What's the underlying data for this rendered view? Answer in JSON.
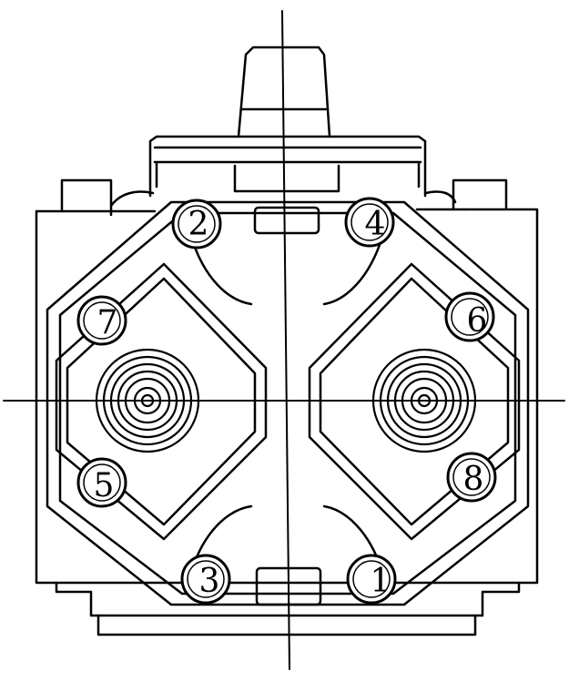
{
  "bolts": [
    {
      "label": "1"
    },
    {
      "label": "2"
    },
    {
      "label": "3"
    },
    {
      "label": "4"
    },
    {
      "label": "5"
    },
    {
      "label": "6"
    },
    {
      "label": "7"
    },
    {
      "label": "8"
    }
  ],
  "colors": {
    "ink": "#000000",
    "paper": "#ffffff"
  }
}
